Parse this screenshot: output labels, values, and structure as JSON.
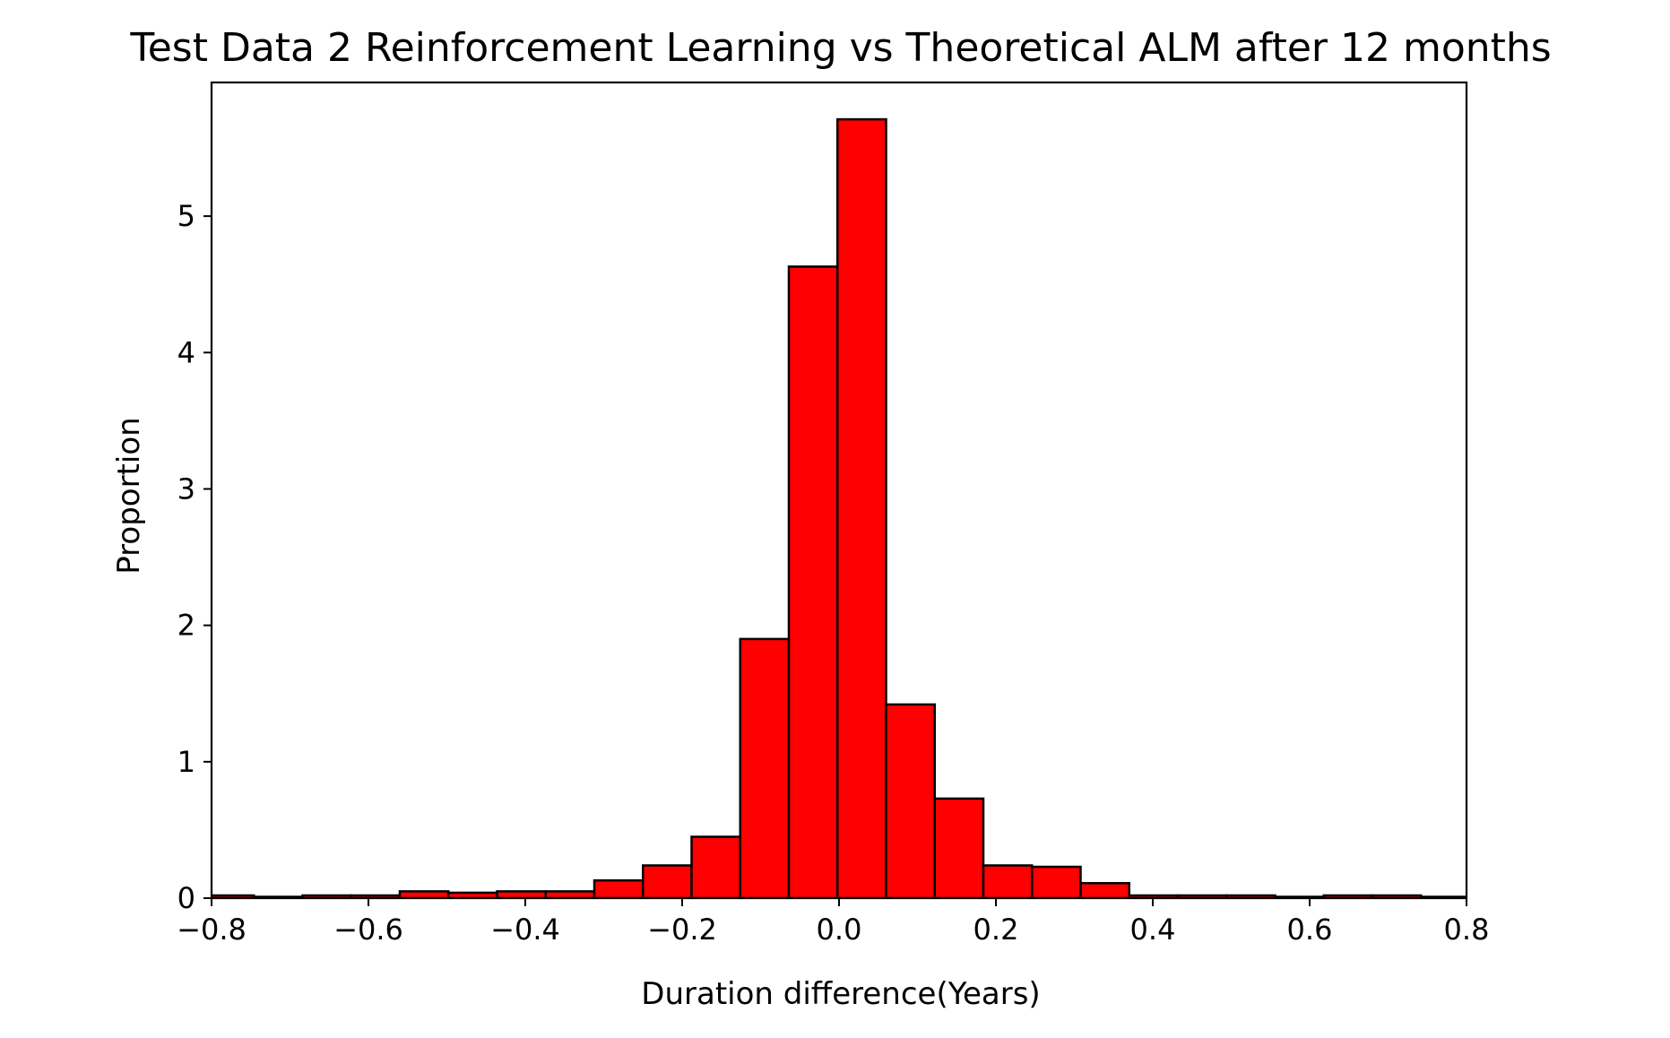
{
  "chart_data": {
    "type": "bar",
    "title": "Test Data 2 Reinforcement Learning vs Theoretical ALM after 12 months",
    "xlabel": "Duration difference(Years)",
    "ylabel": "Proportion",
    "xlim": [
      -0.8,
      0.8
    ],
    "ylim": [
      0,
      5.98
    ],
    "xticks": [
      -0.8,
      -0.6,
      -0.4,
      -0.2,
      0.0,
      0.2,
      0.4,
      0.6,
      0.8
    ],
    "xtick_labels": [
      "−0.8",
      "−0.6",
      "−0.4",
      "−0.2",
      "0.0",
      "0.2",
      "0.4",
      "0.6",
      "0.8"
    ],
    "yticks": [
      0,
      1,
      2,
      3,
      4,
      5
    ],
    "ytick_labels": [
      "0",
      "1",
      "2",
      "3",
      "4",
      "5"
    ],
    "grid": false,
    "legend": "none",
    "bar_color": "#ff0000",
    "edge_color": "#000000",
    "bins": [
      {
        "x0": -0.808,
        "x1": -0.746,
        "value": 0.02
      },
      {
        "x0": -0.746,
        "x1": -0.684,
        "value": 0.01
      },
      {
        "x0": -0.684,
        "x1": -0.622,
        "value": 0.02
      },
      {
        "x0": -0.622,
        "x1": -0.56,
        "value": 0.02
      },
      {
        "x0": -0.56,
        "x1": -0.498,
        "value": 0.05
      },
      {
        "x0": -0.498,
        "x1": -0.436,
        "value": 0.04
      },
      {
        "x0": -0.436,
        "x1": -0.374,
        "value": 0.05
      },
      {
        "x0": -0.374,
        "x1": -0.312,
        "value": 0.05
      },
      {
        "x0": -0.312,
        "x1": -0.25,
        "value": 0.13
      },
      {
        "x0": -0.25,
        "x1": -0.188,
        "value": 0.24
      },
      {
        "x0": -0.188,
        "x1": -0.126,
        "value": 0.45
      },
      {
        "x0": -0.126,
        "x1": -0.064,
        "value": 1.9
      },
      {
        "x0": -0.064,
        "x1": -0.002,
        "value": 4.63
      },
      {
        "x0": -0.002,
        "x1": 0.06,
        "value": 5.71
      },
      {
        "x0": 0.06,
        "x1": 0.122,
        "value": 1.42
      },
      {
        "x0": 0.122,
        "x1": 0.184,
        "value": 0.73
      },
      {
        "x0": 0.184,
        "x1": 0.246,
        "value": 0.24
      },
      {
        "x0": 0.246,
        "x1": 0.308,
        "value": 0.23
      },
      {
        "x0": 0.308,
        "x1": 0.37,
        "value": 0.11
      },
      {
        "x0": 0.37,
        "x1": 0.432,
        "value": 0.02
      },
      {
        "x0": 0.432,
        "x1": 0.494,
        "value": 0.02
      },
      {
        "x0": 0.494,
        "x1": 0.556,
        "value": 0.02
      },
      {
        "x0": 0.556,
        "x1": 0.618,
        "value": 0.01
      },
      {
        "x0": 0.618,
        "x1": 0.68,
        "value": 0.02
      },
      {
        "x0": 0.68,
        "x1": 0.742,
        "value": 0.02
      },
      {
        "x0": 0.742,
        "x1": 0.804,
        "value": 0.01
      }
    ]
  }
}
